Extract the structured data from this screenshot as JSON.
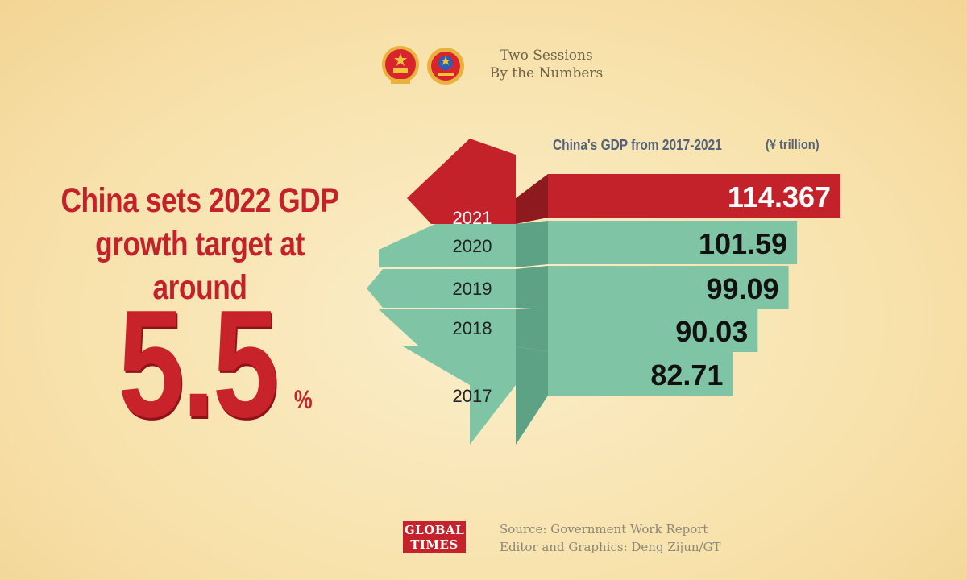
{
  "header": {
    "line1": "Two Sessions",
    "line2": "By the Numbers",
    "emblems": [
      "national-emblem-icon",
      "cppcc-emblem-icon"
    ]
  },
  "headline": {
    "line1": "China sets 2022 GDP",
    "line2": "growth target at around",
    "value": "5.5",
    "unit": "%"
  },
  "colors": {
    "red": "#c3222a",
    "teal": "#7fc4a4",
    "background": "#f8e4b2"
  },
  "chart_data": {
    "type": "bar",
    "orientation": "horizontal",
    "title": "China's GDP from 2017-2021",
    "unit": "(¥ trillion)",
    "categories": [
      "2021",
      "2020",
      "2019",
      "2018",
      "2017"
    ],
    "values": [
      114.367,
      101.59,
      99.09,
      90.03,
      82.71
    ],
    "value_labels": [
      "114.367",
      "101.59",
      "99.09",
      "90.03",
      "82.71"
    ],
    "highlight": "2021"
  },
  "footer": {
    "logo_line1": "GLOBAL",
    "logo_line2": "TIMES",
    "source": "Source: Government Work Report",
    "editor": "Editor and Graphics: Deng Zijun/GT"
  }
}
